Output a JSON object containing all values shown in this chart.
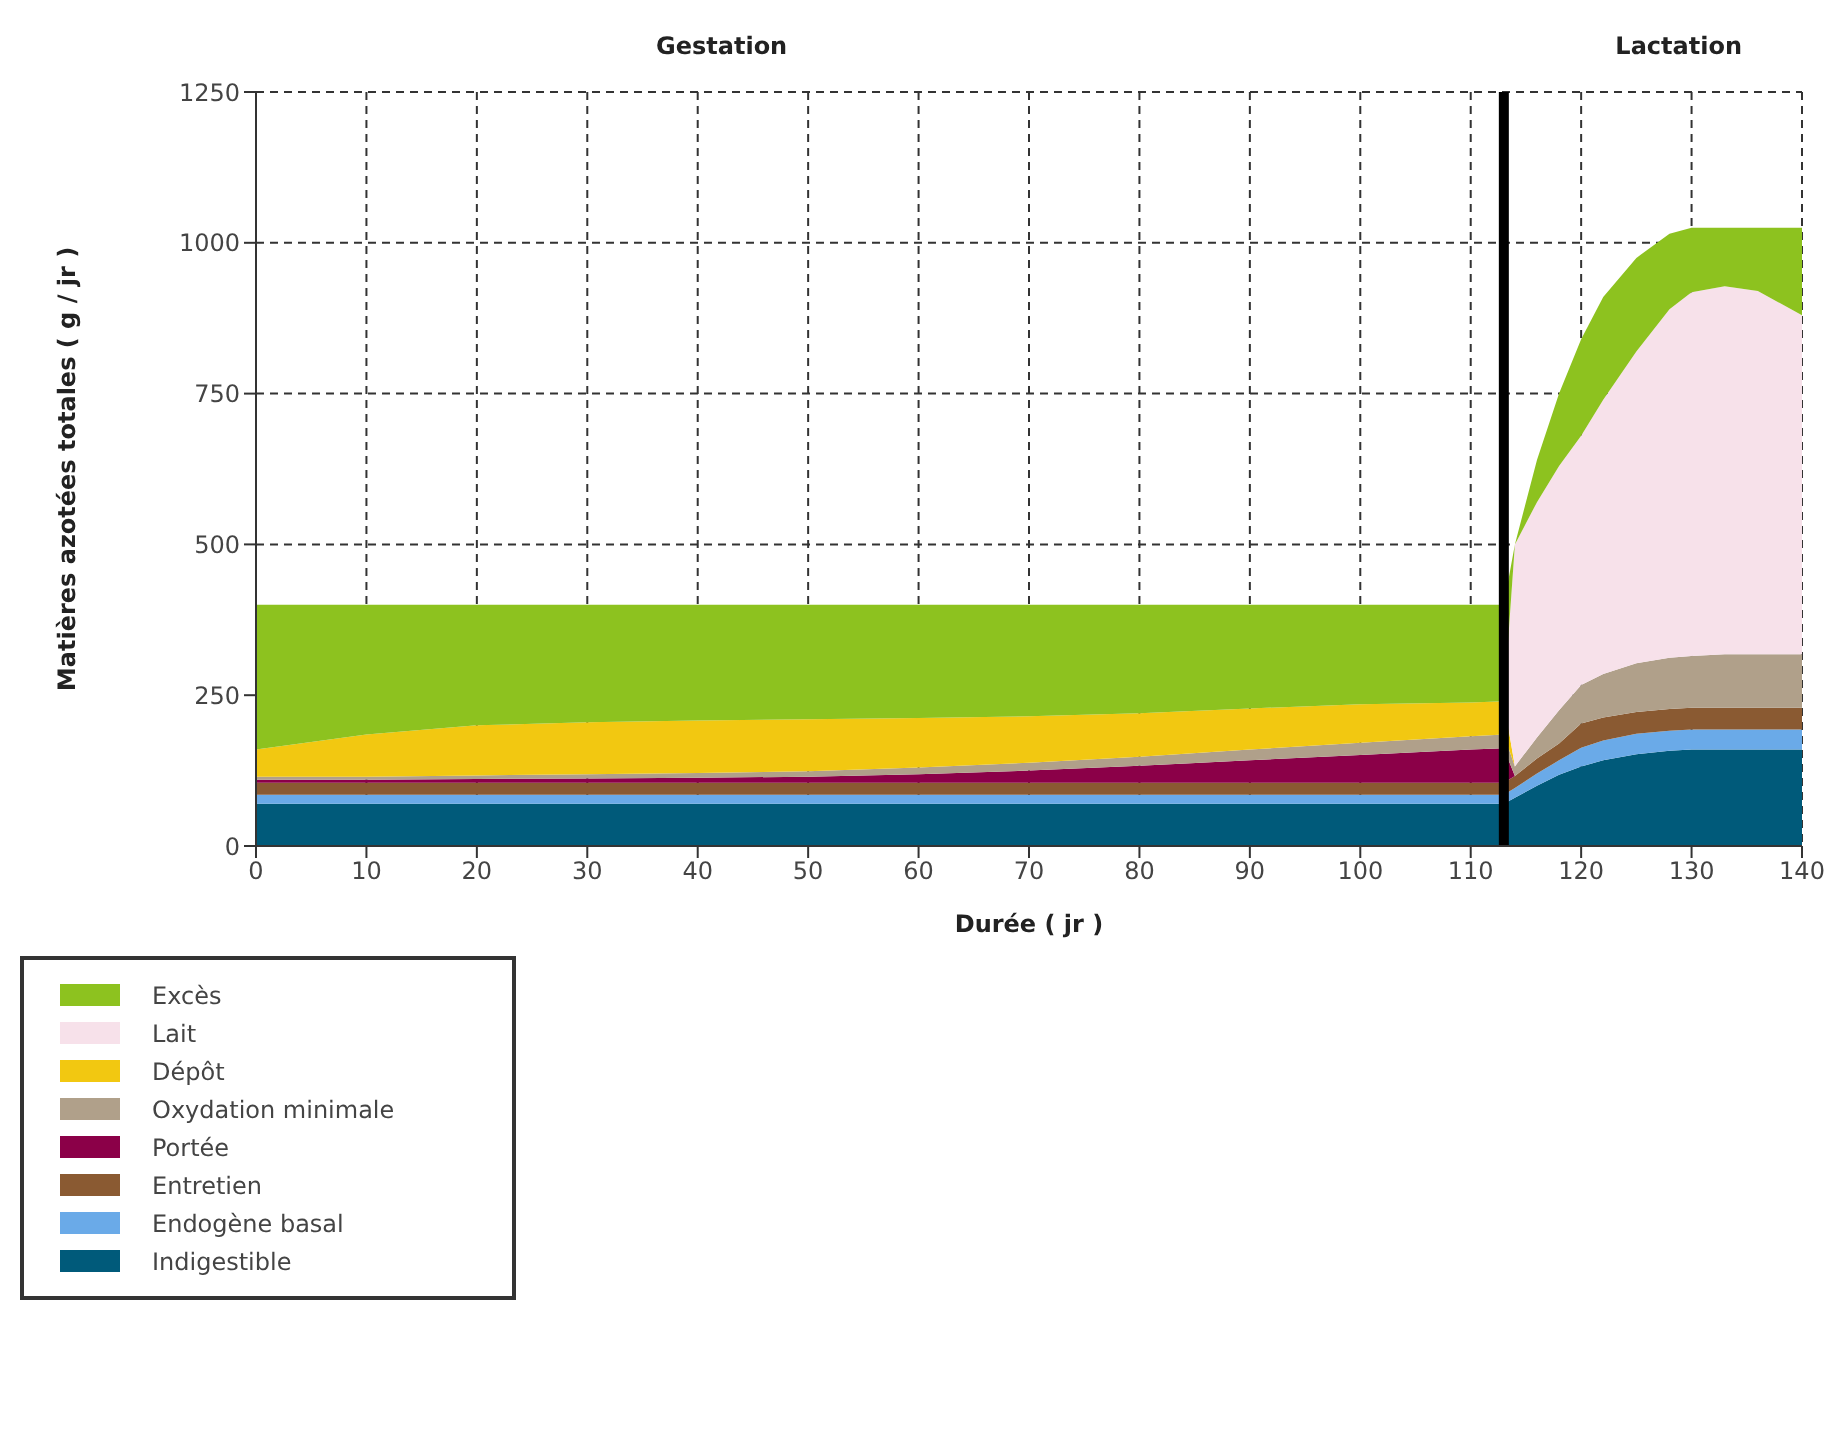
{
  "chart_data": {
    "type": "area",
    "stacked": true,
    "xlabel": "Durée ( jr )",
    "ylabel": "Matières azotées totales ( g / jr )",
    "annotations": [
      "Gestation",
      "Lactation"
    ],
    "x": [
      0,
      10,
      20,
      30,
      40,
      50,
      60,
      70,
      80,
      90,
      100,
      110,
      113,
      114,
      116,
      118,
      120,
      122,
      125,
      128,
      130,
      133,
      136,
      140
    ],
    "xlim": [
      0,
      140
    ],
    "xticks": [
      0,
      10,
      20,
      30,
      40,
      50,
      60,
      70,
      80,
      90,
      100,
      110,
      120,
      130,
      140
    ],
    "ylim": [
      0,
      1250
    ],
    "yticks": [
      0,
      250,
      500,
      750,
      1000,
      1250
    ],
    "grid": true,
    "legend": "bottom",
    "ref_lines": [
      {
        "axis": "x",
        "value": 113,
        "color": "#000000"
      }
    ],
    "series": [
      {
        "name": "Indigestible",
        "color": "#005a7a",
        "values": [
          70,
          70,
          70,
          70,
          70,
          70,
          70,
          70,
          70,
          70,
          70,
          70,
          70,
          80,
          100,
          118,
          132,
          142,
          152,
          158,
          160,
          160,
          160,
          160
        ]
      },
      {
        "name": "Endogène basal",
        "color": "#6aaae8",
        "values": [
          15,
          15,
          15,
          15,
          15,
          15,
          15,
          15,
          15,
          15,
          15,
          15,
          15,
          16,
          20,
          24,
          31,
          33,
          34,
          33,
          33,
          33,
          33,
          33
        ]
      },
      {
        "name": "Entretien",
        "color": "#8a5a32",
        "values": [
          20,
          20,
          20,
          20,
          20,
          20,
          20,
          20,
          20,
          20,
          20,
          20,
          20,
          20,
          25,
          28,
          40,
          38,
          36,
          36,
          36,
          36,
          36,
          36
        ]
      },
      {
        "name": "Portée",
        "color": "#8b0048",
        "values": [
          5,
          5,
          6,
          7,
          8,
          10,
          14,
          20,
          28,
          37,
          46,
          55,
          57,
          0,
          0,
          0,
          0,
          0,
          0,
          0,
          0,
          0,
          0,
          0
        ]
      },
      {
        "name": "Oxydation minimale",
        "color": "#b0a08a",
        "values": [
          5,
          5,
          6,
          7,
          8,
          9,
          11,
          13,
          15,
          18,
          20,
          22,
          23,
          16,
          35,
          55,
          64,
          72,
          81,
          85,
          86,
          89,
          89,
          89
        ]
      },
      {
        "name": "Dépôt",
        "color": "#f2c811",
        "values": [
          45,
          70,
          83,
          86,
          87,
          86,
          82,
          77,
          72,
          68,
          64,
          56,
          55,
          0,
          0,
          0,
          0,
          0,
          0,
          0,
          0,
          0,
          0,
          0
        ]
      },
      {
        "name": "Lait",
        "color": "#f7e1ea",
        "values": [
          0,
          0,
          0,
          0,
          0,
          0,
          0,
          0,
          0,
          0,
          0,
          0,
          0,
          368,
          390,
          405,
          413,
          455,
          517,
          578,
          603,
          610,
          602,
          562
        ]
      },
      {
        "name": "Excès",
        "color": "#8dc21f",
        "values": [
          240,
          215,
          200,
          195,
          192,
          190,
          188,
          185,
          180,
          172,
          165,
          162,
          160,
          0,
          70,
          120,
          160,
          170,
          155,
          125,
          107,
          97,
          105,
          145
        ]
      }
    ]
  }
}
